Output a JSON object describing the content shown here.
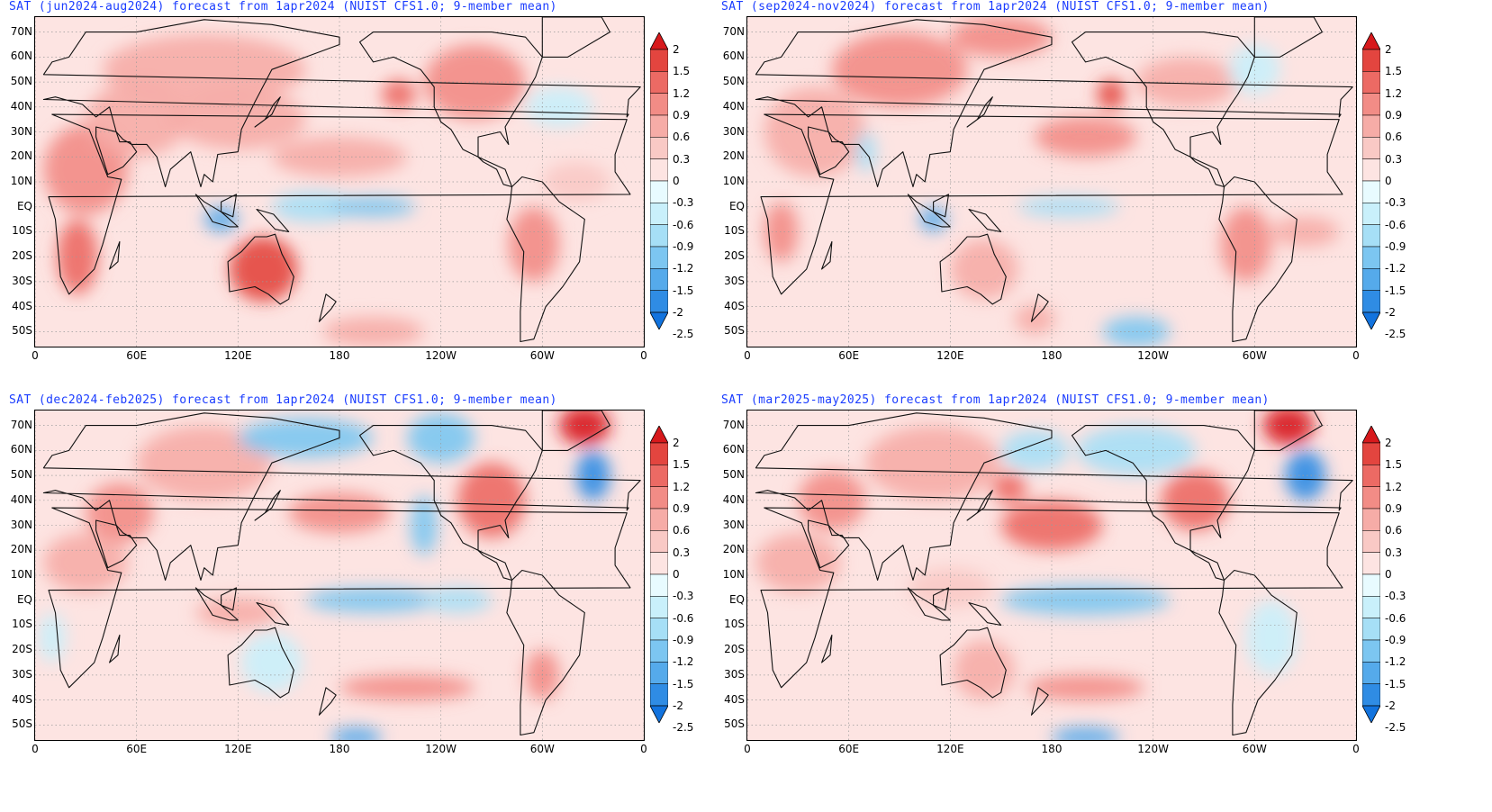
{
  "panels": [
    {
      "title": "SAT (jun2024-aug2024) forecast from 1apr2024 (NUIST CFS1.0; 9-member mean)",
      "pattern": "jja"
    },
    {
      "title": "SAT (sep2024-nov2024) forecast from 1apr2024 (NUIST CFS1.0; 9-member mean)",
      "pattern": "son"
    },
    {
      "title": "SAT (dec2024-feb2025) forecast from 1apr2024 (NUIST CFS1.0; 9-member mean)",
      "pattern": "djf"
    },
    {
      "title": "SAT (mar2025-may2025) forecast from 1apr2024 (NUIST CFS1.0; 9-member mean)",
      "pattern": "mam"
    }
  ],
  "latitude_labels": [
    "70N",
    "60N",
    "50N",
    "40N",
    "30N",
    "20N",
    "10N",
    "EQ",
    "10S",
    "20S",
    "30S",
    "40S",
    "50S"
  ],
  "longitude_labels": [
    "0",
    "60E",
    "120E",
    "180",
    "120W",
    "60W",
    "0"
  ],
  "colorbar": {
    "labels": [
      "2",
      "1.5",
      "1.2",
      "0.9",
      "0.6",
      "0.3",
      "0",
      "-0.3",
      "-0.6",
      "-0.9",
      "-1.2",
      "-1.5",
      "-2",
      "-2.5"
    ],
    "colors": [
      "#d7191c",
      "#e3453f",
      "#ec6a64",
      "#f28c86",
      "#f6aca7",
      "#f9c9c5",
      "#fde4e2",
      "#e8fbff",
      "#c9f0fb",
      "#a6dff6",
      "#7cc6f1",
      "#55aaeb",
      "#2f8ce4",
      "#1273de"
    ],
    "top_color": "#d7191c",
    "bottom_color": "#1273de"
  }
}
